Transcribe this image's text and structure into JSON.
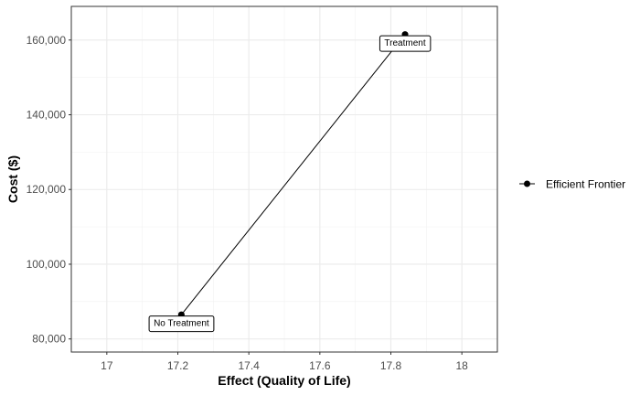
{
  "chart_data": {
    "type": "line",
    "xlabel": "Effect (Quality of Life)",
    "ylabel": "Cost ($)",
    "xlim": [
      16.9,
      18.1
    ],
    "ylim": [
      76500,
      169000
    ],
    "x_ticks": [
      17,
      17.2,
      17.4,
      17.6,
      17.8,
      18
    ],
    "x_tick_labels": [
      "17",
      "17.2",
      "17.4",
      "17.6",
      "17.8",
      "18"
    ],
    "y_ticks": [
      80000,
      100000,
      120000,
      140000,
      160000
    ],
    "y_tick_labels": [
      "80,000",
      "100,000",
      "120,000",
      "140,000",
      "160,000"
    ],
    "grid": true,
    "legend_position": "right",
    "series": [
      {
        "name": "Efficient Frontier",
        "x": [
          17.21,
          17.84
        ],
        "y": [
          86500,
          161500
        ],
        "labels": [
          "No Treatment",
          "Treatment"
        ]
      }
    ]
  }
}
